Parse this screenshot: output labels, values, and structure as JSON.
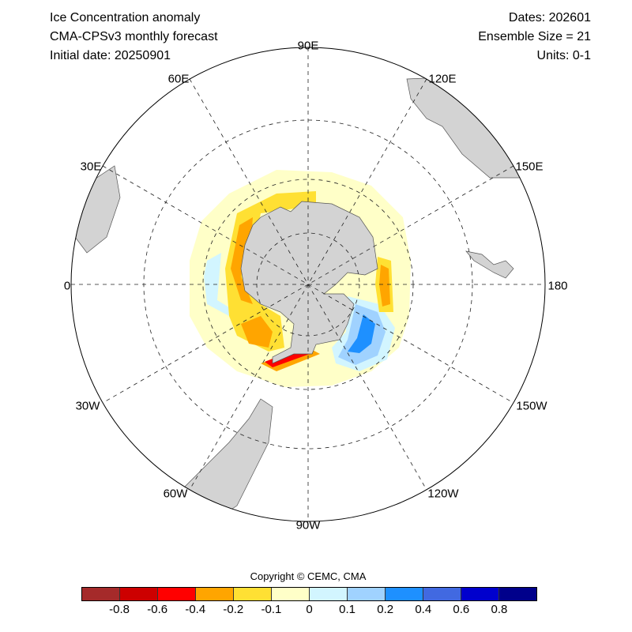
{
  "header": {
    "title": "Ice Concentration anomaly",
    "model": "CMA-CPSv3 monthly forecast",
    "initial_date": "Initial date: 20250901",
    "dates": "Dates: 202601",
    "ensemble": "Ensemble Size = 21",
    "units": "Units: 0-1"
  },
  "map": {
    "projection": "south-polar-stereographic",
    "longitude_labels": [
      "90E",
      "120E",
      "150E",
      "180",
      "150W",
      "120W",
      "90W",
      "60W",
      "30W",
      "0",
      "30E",
      "60E"
    ],
    "land_color": "#d3d3d3"
  },
  "colorbar": {
    "copyright": "Copyright © CEMC, CMA",
    "colors": [
      "#a52a2a",
      "#cd0000",
      "#ff0000",
      "#ffa500",
      "#ffe033",
      "#ffffc8",
      "#d2f5ff",
      "#a0d2ff",
      "#1e90ff",
      "#4169e1",
      "#0000cd",
      "#00008b"
    ],
    "tick_labels": [
      "-0.8",
      "-0.6",
      "-0.4",
      "-0.2",
      "-0.1",
      "0",
      "0.1",
      "0.2",
      "0.4",
      "0.6",
      "0.8"
    ]
  }
}
